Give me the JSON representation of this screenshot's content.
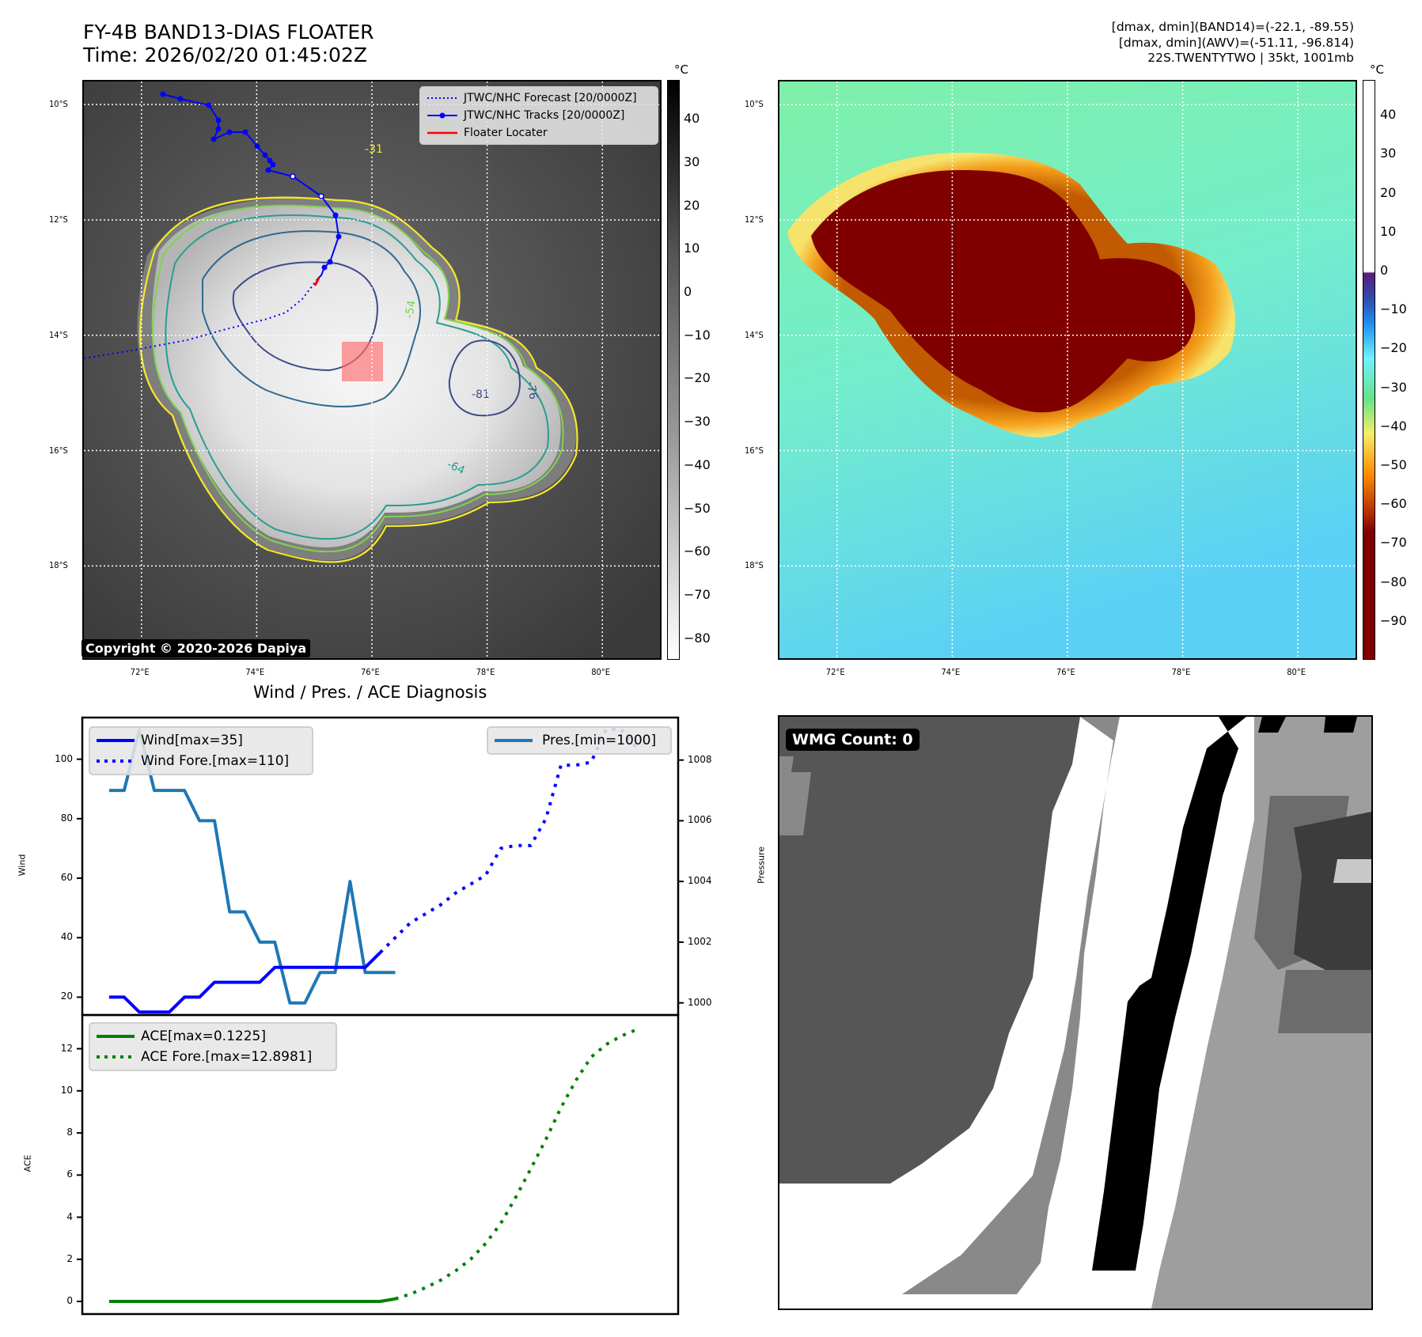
{
  "header": {
    "title_line1": "FY-4B BAND13-DIAS FLOATER",
    "title_line2": "Time: 2026/02/20 01:45:02Z",
    "info_line1": "[dmax, dmin](BAND14)=(-22.1, -89.55)",
    "info_line2": "[dmax, dmin](AWV)=(-51.11, -96.814)",
    "info_line3": "22S.TWENTYTWO | 35kt, 1001mb"
  },
  "map": {
    "lat_ticks": [
      "10°S",
      "12°S",
      "14°S",
      "16°S",
      "18°S"
    ],
    "lon_ticks": [
      "72°E",
      "74°E",
      "76°E",
      "78°E",
      "80°E"
    ],
    "lat_values": [
      -10,
      -12,
      -14,
      -16,
      -18
    ],
    "lon_values": [
      72,
      74,
      76,
      78,
      80
    ],
    "lat_range": [
      -19.6,
      -9.6
    ],
    "lon_range": [
      71.0,
      81.0
    ],
    "copyright": "Copyright © 2020-2026 Dapiya",
    "legend": {
      "forecast": "JTWC/NHC Forecast [20/0000Z]",
      "tracks": "JTWC/NHC Tracks [20/0000Z]",
      "floater": "Floater Locater"
    },
    "contour_labels": [
      "-31",
      "-54",
      "-64",
      "-76",
      "-81"
    ],
    "colors": {
      "forecast": "#0000ff",
      "tracks": "#0000ff",
      "floater": "#ff0000"
    }
  },
  "colorbar_gray": {
    "unit": "°C",
    "ticks": [
      "40",
      "30",
      "20",
      "10",
      "0",
      "−10",
      "−20",
      "−30",
      "−40",
      "−50",
      "−60",
      "−70",
      "−80"
    ],
    "range": [
      -85,
      49
    ]
  },
  "colorbar_awv": {
    "unit": "°C",
    "ticks": [
      "40",
      "30",
      "20",
      "10",
      "0",
      "−10",
      "−20",
      "−30",
      "−40",
      "−50",
      "−60",
      "−70",
      "−80",
      "−90"
    ],
    "range": [
      -100,
      49
    ]
  },
  "wmg": {
    "label": "WMG Count: 0"
  },
  "chart_data": [
    {
      "type": "line",
      "title": "Wind / Pres. / ACE Diagnosis",
      "ylabel": "Wind",
      "y2label": "Pressure",
      "ylim": [
        14,
        114
      ],
      "y2lim": [
        999.6,
        1009.4
      ],
      "yticks": [
        "20",
        "40",
        "60",
        "80",
        "100"
      ],
      "y2ticks": [
        "1000",
        "1002",
        "1004",
        "1006",
        "1008"
      ],
      "ytick_values": [
        20,
        40,
        60,
        80,
        100
      ],
      "y2tick_values": [
        1000,
        1002,
        1004,
        1006,
        1008
      ],
      "xlim": [
        0,
        36
      ],
      "series": [
        {
          "name": "Wind[max=35]",
          "axis": "left",
          "style": "solid",
          "color": "#0000ff",
          "x": [
            0,
            1,
            2,
            3,
            4,
            5,
            6,
            7,
            8,
            9,
            10,
            11,
            12,
            13,
            14,
            15,
            16,
            17,
            18
          ],
          "values": [
            20,
            20,
            15,
            15,
            15,
            20,
            20,
            25,
            25,
            25,
            25,
            30,
            30,
            30,
            30,
            30,
            30,
            30,
            35
          ]
        },
        {
          "name": "Wind Fore.[max=110]",
          "axis": "left",
          "style": "dotted",
          "color": "#0000ff",
          "x": [
            18,
            19,
            20,
            21,
            22,
            23,
            24,
            25,
            26,
            27,
            28,
            29,
            30,
            31,
            32,
            33,
            34,
            35
          ],
          "values": [
            35,
            40,
            45,
            48,
            51,
            55,
            58,
            61,
            70,
            71,
            71,
            80,
            98,
            98,
            99,
            110,
            110,
            104
          ]
        },
        {
          "name": "Pres.[min=1000]",
          "axis": "right",
          "style": "solid",
          "color": "#1f77b4",
          "x": [
            0,
            1,
            2,
            3,
            4,
            5,
            6,
            7,
            8,
            9,
            10,
            11,
            12,
            13,
            14,
            15,
            16,
            17,
            18,
            19
          ],
          "values": [
            1007,
            1007,
            1009,
            1007,
            1007,
            1007,
            1006,
            1006,
            1003,
            1003,
            1002,
            1002,
            1000,
            1000,
            1001,
            1001,
            1004,
            1001,
            1001,
            1001
          ]
        }
      ],
      "legend_left": [
        "Wind[max=35]",
        "Wind Fore.[max=110]"
      ],
      "legend_right": [
        "Pres.[min=1000]"
      ]
    },
    {
      "type": "line",
      "ylabel": "ACE",
      "ylim": [
        -0.6,
        13.6
      ],
      "yticks": [
        "0",
        "2",
        "4",
        "6",
        "8",
        "10",
        "12"
      ],
      "ytick_values": [
        0,
        2,
        4,
        6,
        8,
        10,
        12
      ],
      "xlim": [
        0,
        36
      ],
      "series": [
        {
          "name": "ACE[max=0.1225]",
          "style": "solid",
          "color": "#008000",
          "x": [
            0,
            18,
            19
          ],
          "values": [
            0,
            0,
            0.1225
          ]
        },
        {
          "name": "ACE Fore.[max=12.8981]",
          "style": "dotted",
          "color": "#008000",
          "x": [
            19,
            20,
            21,
            22,
            23,
            24,
            25,
            26,
            27,
            28,
            29,
            30,
            31,
            32,
            33,
            34,
            35
          ],
          "values": [
            0.12,
            0.35,
            0.65,
            1.0,
            1.45,
            2.0,
            2.75,
            3.7,
            4.95,
            6.3,
            7.7,
            9.2,
            10.5,
            11.6,
            12.2,
            12.6,
            12.9
          ]
        }
      ],
      "legend": [
        "ACE[max=0.1225]",
        "ACE Fore.[max=12.8981]"
      ]
    }
  ]
}
